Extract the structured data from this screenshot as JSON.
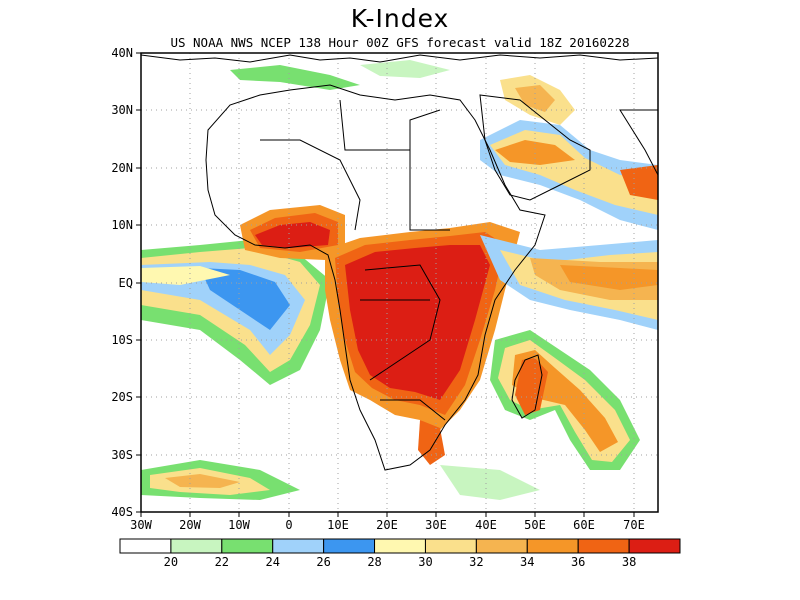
{
  "title": "K-Index",
  "subtitle": "US NOAA NWS NCEP 138 Hour 00Z GFS forecast valid 18Z 20160228",
  "axes": {
    "lat_labels": [
      "40N",
      "30N",
      "20N",
      "10N",
      "EQ",
      "10S",
      "20S",
      "30S",
      "40S"
    ],
    "lat_values": [
      40,
      30,
      20,
      10,
      0,
      -10,
      -20,
      -30,
      -40
    ],
    "lon_labels": [
      "30W",
      "20W",
      "10W",
      "0",
      "10E",
      "20E",
      "30E",
      "40E",
      "50E",
      "60E",
      "70E"
    ],
    "lon_values": [
      -30,
      -20,
      -10,
      0,
      10,
      20,
      30,
      40,
      50,
      60,
      70
    ],
    "lon_range": [
      -30,
      75
    ],
    "lat_range": [
      -40,
      40
    ]
  },
  "colorbar": {
    "colors": [
      "#ffffff",
      "#c8f5c0",
      "#78e070",
      "#a0d2fa",
      "#3c96f0",
      "#fff8b0",
      "#fae08c",
      "#f5b450",
      "#f59628",
      "#f06414",
      "#dc1e14"
    ],
    "labels": [
      "20",
      "22",
      "24",
      "26",
      "28",
      "30",
      "32",
      "34",
      "36",
      "38"
    ]
  },
  "colors": {
    "land_outline": "#000000",
    "grid": "#a0a0a0"
  }
}
